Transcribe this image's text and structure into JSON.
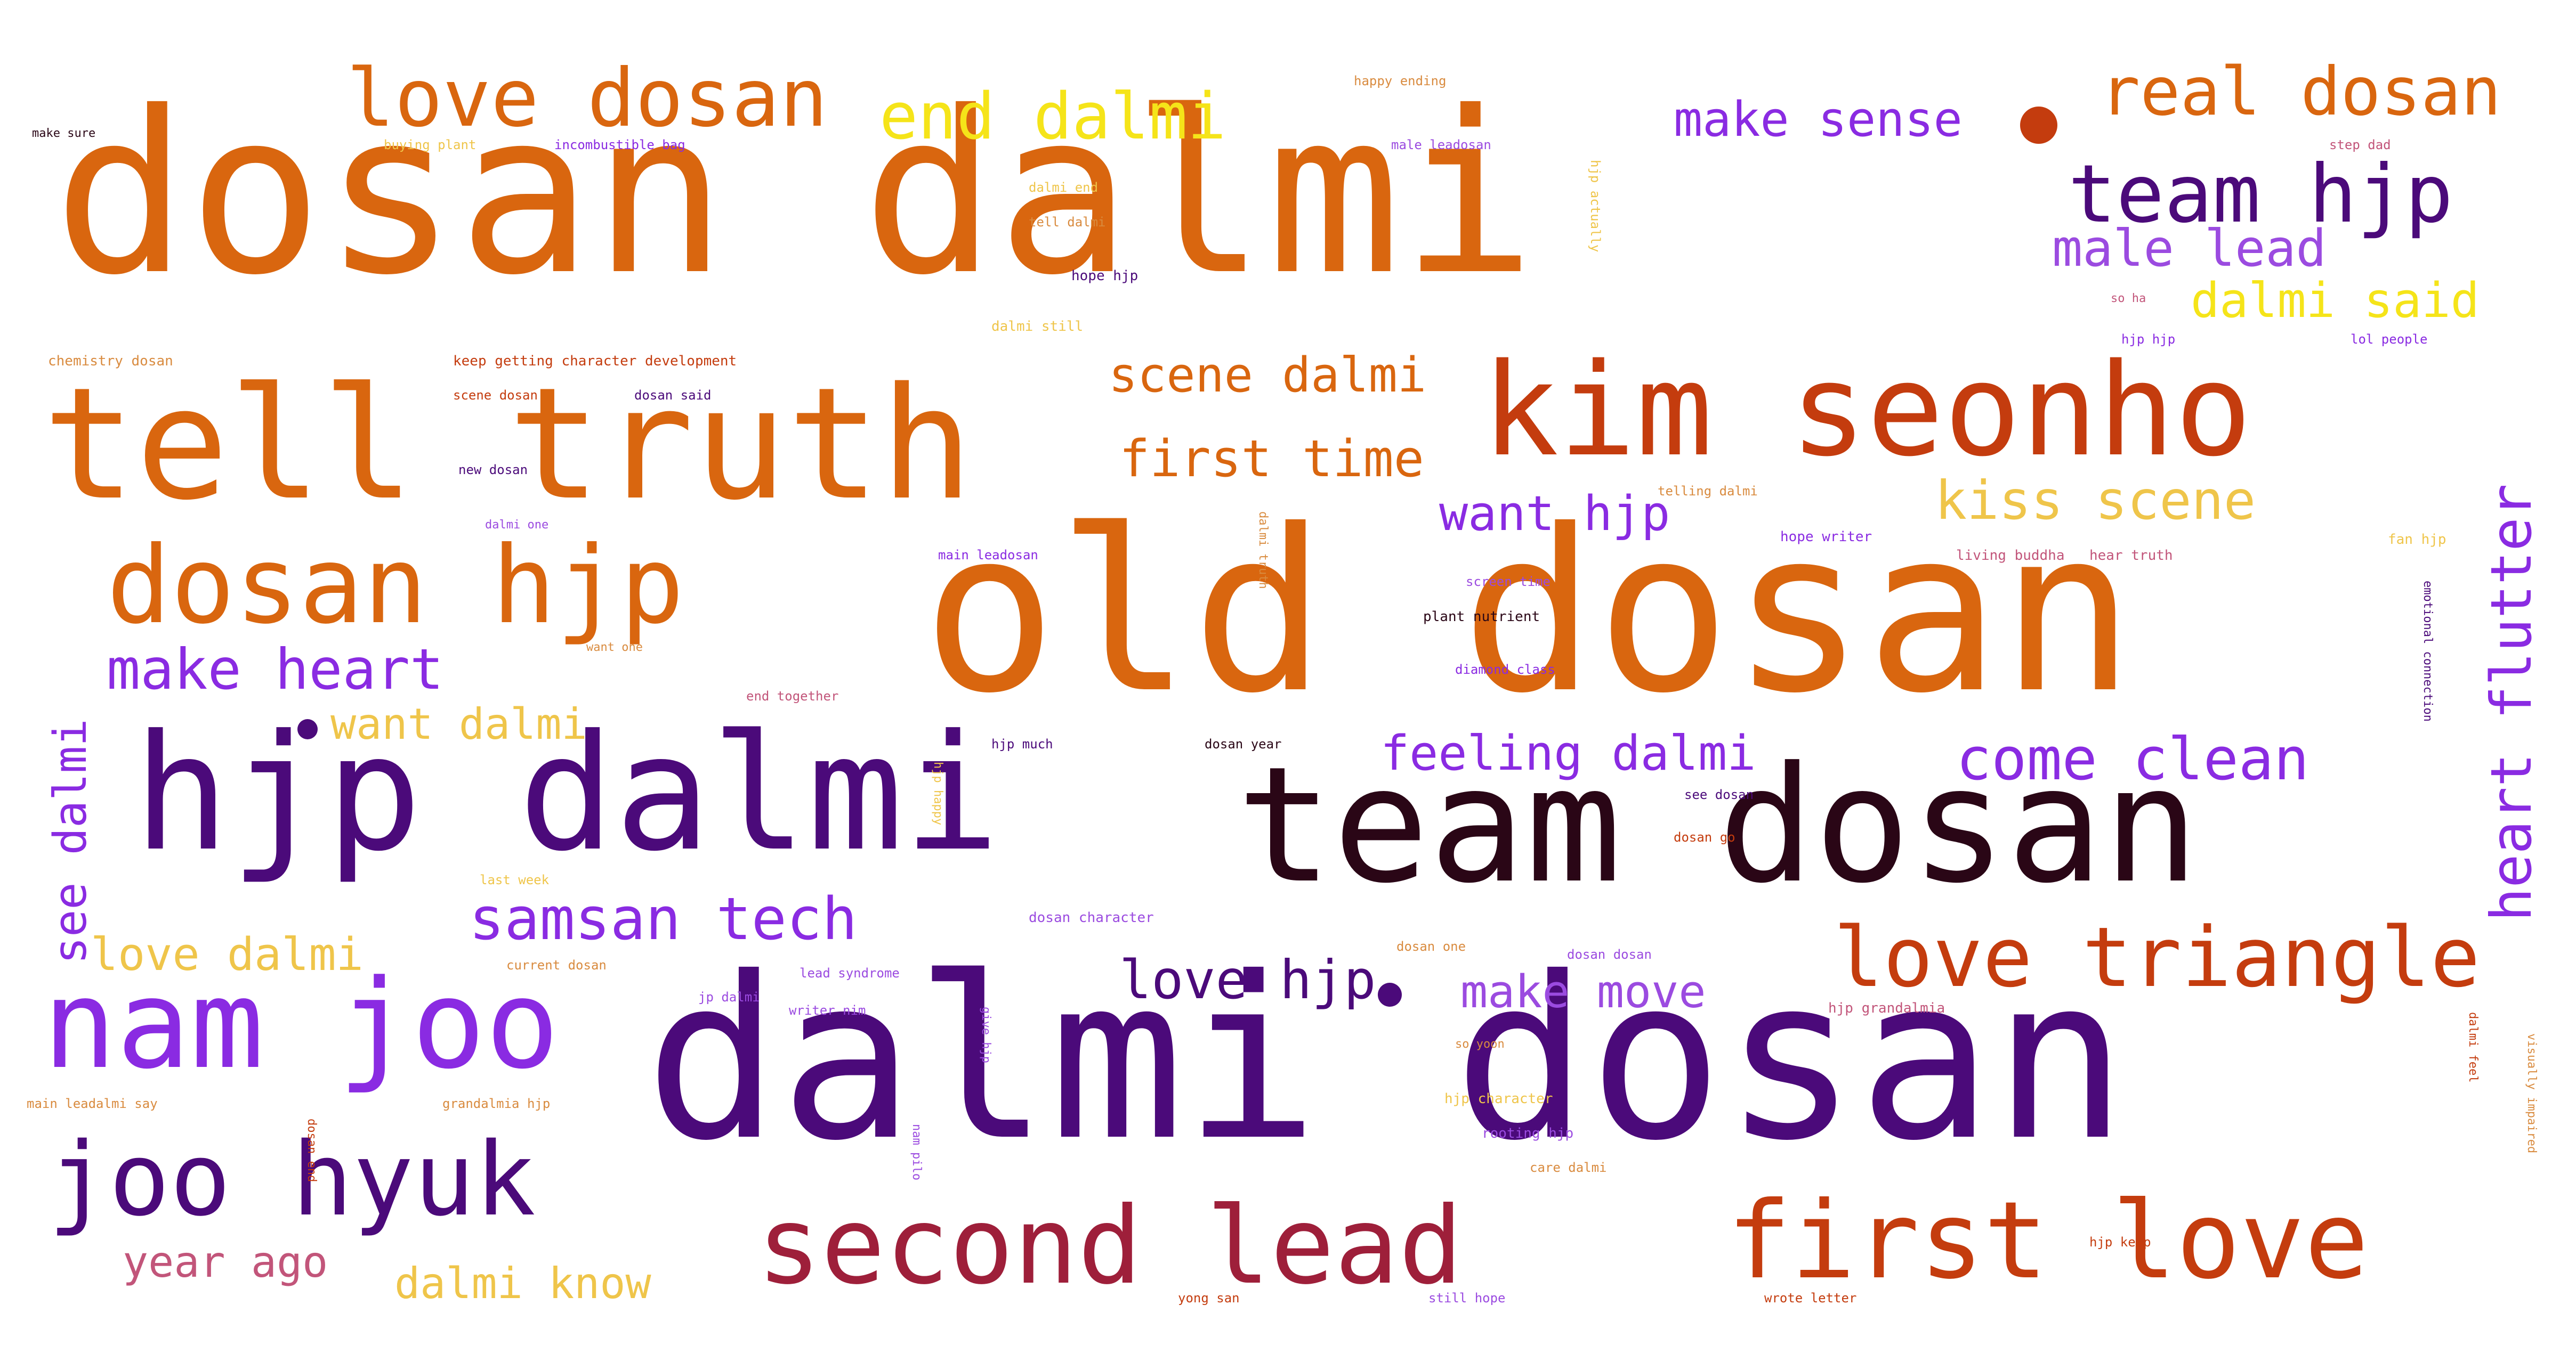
{
  "palette": {
    "orange": "#D9660F",
    "burnt": "#C43C0E",
    "purple": "#4B0A7A",
    "violet": "#8A2BE2",
    "lavender": "#9B4BE0",
    "maroon": "#9E1F3A",
    "deep": "#2A0616",
    "yellow": "#F5E419",
    "gold": "#EFC54A",
    "tan": "#D98B3F",
    "rose": "#C2557A"
  },
  "words": [
    "dosan dalmi",
    "old dosan",
    "dalmi dosan",
    "tell truth",
    "team dosan",
    "hjp dalmi",
    "kim seonho",
    "dosan hjp",
    "nam joo",
    "joo hyuk",
    "second lead",
    "first love",
    "love triangle",
    "love dosan",
    "end dalmi",
    "real dosan",
    "team hjp",
    "make sense",
    "male lead",
    "dalmi said",
    "scene dalmi",
    "first time",
    "kiss scene",
    "want hjp",
    "make heart",
    "want dalmi",
    "feeling dalmi",
    "come clean",
    "samsan tech",
    "love dalmi",
    "love hjp",
    "make move",
    "year ago",
    "dalmi know",
    "heart flutter",
    "see dalmi",
    "happy ending",
    "make sure",
    "buying plant",
    "incombustible bag",
    "male leadosan",
    "step dad",
    "dalmi end",
    "tell dalmi",
    "hope hjp",
    "dalmi still",
    "hjp actually",
    "so ha",
    "chemistry dosan",
    "keep getting character development",
    "hjp hjp",
    "lol people",
    "scene dosan",
    "dosan said",
    "new dosan",
    "telling dalmi",
    "dalmi one",
    "hope writer",
    "main leadosan",
    "dalmi truth",
    "living buddha",
    "hear truth",
    "fan hjp",
    "screen time",
    "plant nutrient",
    "want one",
    "diamond class",
    "end together",
    "hjp much",
    "dosan year",
    "hjp happy",
    "see dosan",
    "dosan go",
    "last week",
    "dosan character",
    "current dosan",
    "lead syndrome",
    "dosan one",
    "dosan dosan",
    "jp dalmi",
    "writer nim",
    "hjp grandalmia",
    "so yoon",
    "main leadalmi say",
    "grandalmia hjp",
    "hjp character",
    "rooting hjp",
    "care dalmi",
    "visually impaired",
    "dalmi feel",
    "emotional connection",
    "dosan end",
    "give hjp",
    "nam pilo",
    "hjp keep",
    "yong san",
    "still hope",
    "wrote letter"
  ]
}
